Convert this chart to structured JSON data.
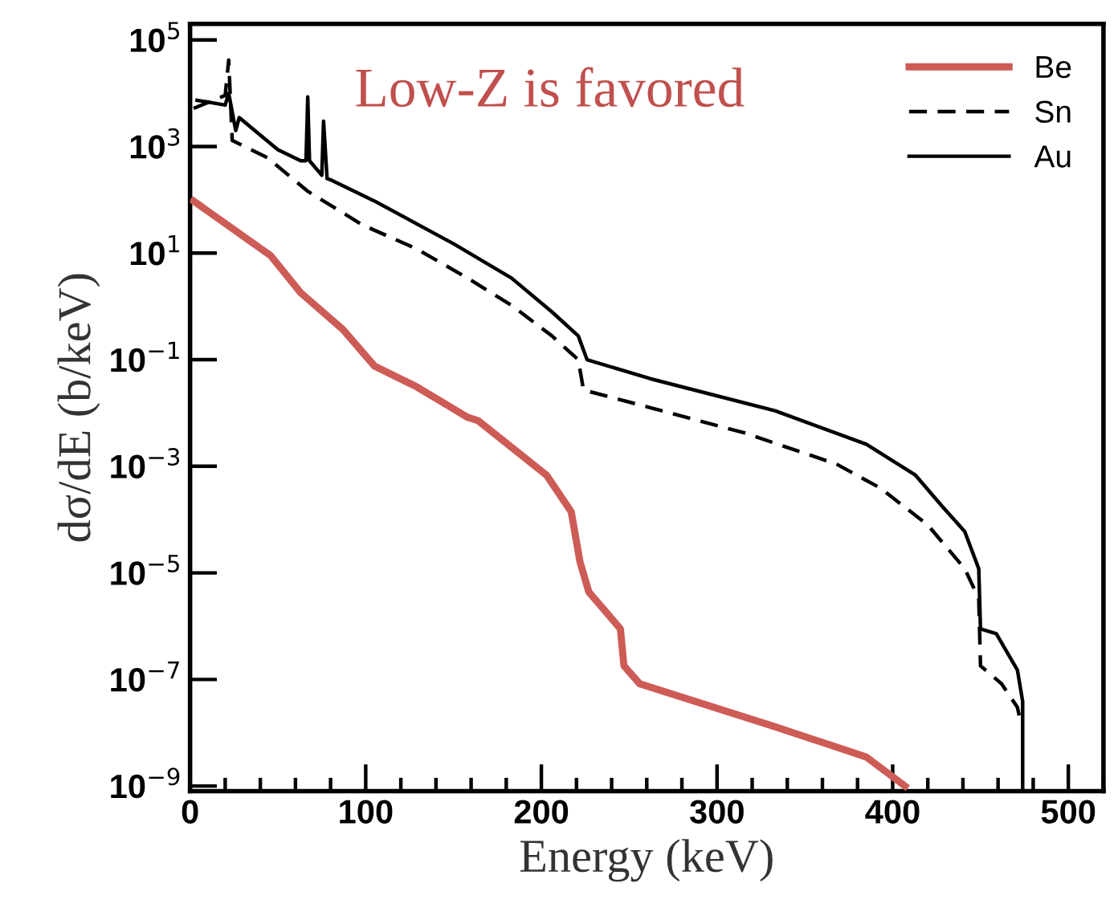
{
  "chart_data": {
    "type": "line",
    "xlabel": "Energy (keV)",
    "ylabel": "dσ/dE (b/keV)",
    "annotations": [
      "Low-Z is favored"
    ],
    "log": "y",
    "xlim": [
      0,
      520
    ],
    "xticks": [
      0,
      100,
      200,
      300,
      400,
      500
    ],
    "ylim": [
      8e-10,
      200000
    ],
    "yticks": [
      {
        "value": 1e-09,
        "label": "10$^{−9}$"
      },
      {
        "value": 1e-07,
        "label": "10$^{−7}$"
      },
      {
        "value": 1e-05,
        "label": "10$^{−5}$"
      },
      {
        "value": 0.001,
        "label": "10$^{−3}$"
      },
      {
        "value": 0.1,
        "label": "10$^{−1}$"
      },
      {
        "value": 10,
        "label": "10$^{1}$"
      },
      {
        "value": 1000,
        "label": "10$^{3}$"
      },
      {
        "value": 100000,
        "label": "10$^{5}$"
      }
    ],
    "grid": false,
    "legend": "top right",
    "marker": "none",
    "series": [
      {
        "name": "Be",
        "color": "#cd5c57",
        "line_style": "solid",
        "x": [
          2,
          46,
          63,
          87,
          105,
          129,
          158,
          164,
          203,
          217,
          222,
          227,
          245,
          247,
          256,
          333,
          385,
          407
        ],
        "values": [
          95,
          8.9,
          1.8,
          0.37,
          0.076,
          0.031,
          0.0083,
          0.0072,
          0.00068,
          0.00014,
          1.6e-05,
          4.4e-06,
          8.9e-07,
          1.8e-07,
          8.3e-08,
          1.3e-08,
          3.5e-09,
          1e-09
        ]
      },
      {
        "name": "Sn",
        "color": "#000000",
        "line_style": "dashed",
        "x": [
          2,
          20,
          22,
          24,
          44,
          67,
          98,
          129,
          158,
          183,
          206,
          221,
          224,
          262,
          316,
          368,
          393,
          420,
          441,
          449,
          450,
          462,
          471,
          473
        ],
        "values": [
          5200,
          9100,
          42000,
          1300,
          620,
          145,
          34,
          12,
          3.4,
          1.05,
          0.28,
          0.1,
          0.027,
          0.0126,
          0.0042,
          0.0011,
          0.00039,
          7.9e-05,
          1.2e-05,
          3.3e-06,
          1.8e-07,
          8.3e-08,
          3e-08,
          1.5e-08
        ]
      },
      {
        "name": "Au",
        "color": "#000000",
        "line_style": "solid",
        "x": [
          4,
          20,
          22,
          26,
          28,
          50,
          63,
          66,
          67,
          68,
          75,
          76,
          78,
          81,
          105,
          150,
          183,
          206,
          221,
          226,
          262,
          333,
          385,
          413,
          428,
          441,
          449,
          450,
          459,
          471,
          474,
          474
        ],
        "values": [
          7400,
          6000,
          10000,
          2000,
          3500,
          870,
          540,
          540,
          8500,
          540,
          290,
          3000,
          250,
          230,
          95,
          15,
          3.4,
          0.79,
          0.28,
          0.1,
          0.044,
          0.011,
          0.0026,
          0.00068,
          0.00018,
          6e-05,
          1.2e-05,
          8.9e-07,
          7.2e-07,
          1.5e-07,
          3.9e-08,
          8e-10
        ]
      }
    ]
  }
}
